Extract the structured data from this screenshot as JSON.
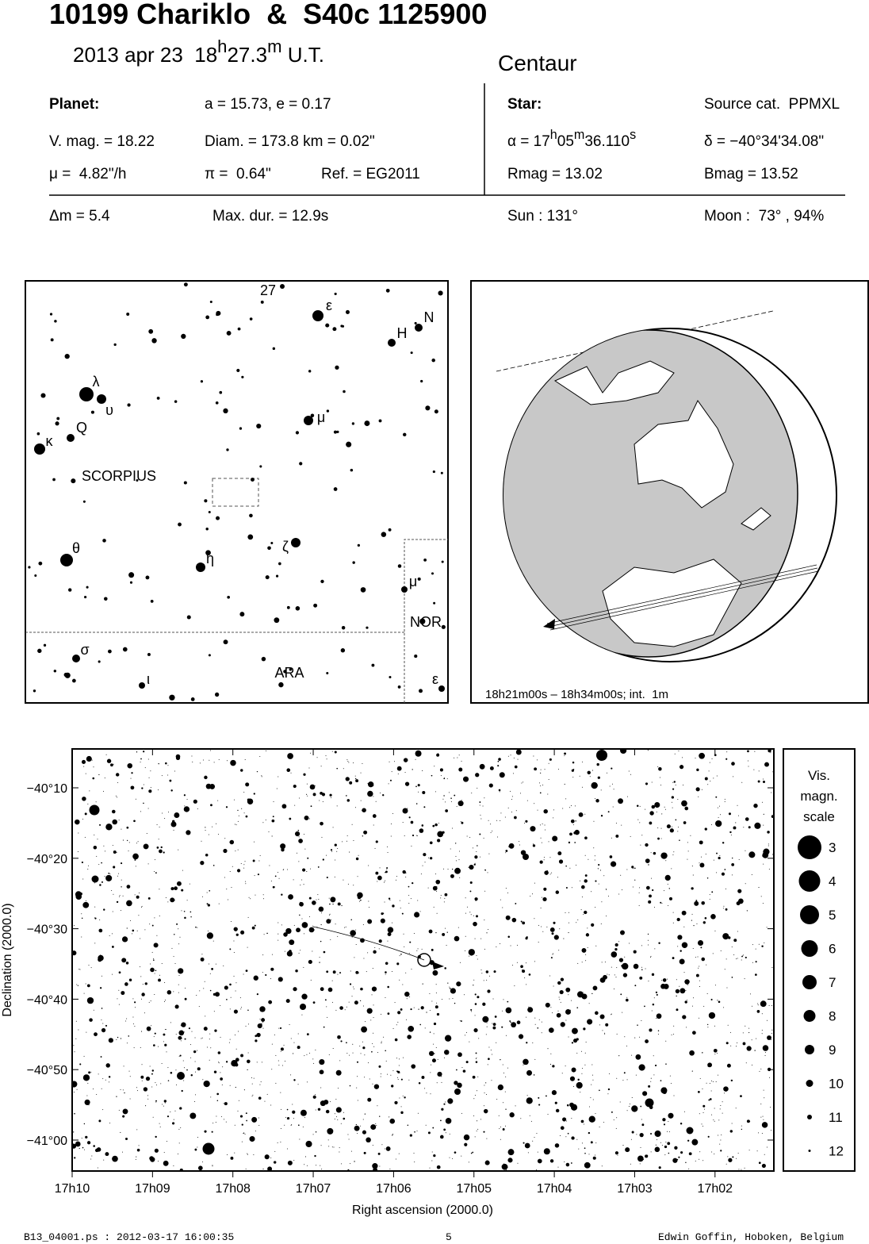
{
  "header": {
    "title": "10199 Chariklo  &  S40c 1125900",
    "datetime": [
      {
        "text": "2013 apr 23  18"
      },
      {
        "text": "h",
        "sup": true
      },
      {
        "text": "27.3"
      },
      {
        "text": "m",
        "sup": true
      },
      {
        "text": " U.T."
      }
    ],
    "constellation": "Centaur"
  },
  "planet": {
    "label": "Planet:",
    "orbit": "a = 15.73, e = 0.17",
    "vmag": "V. mag. = 18.22",
    "diam": "Diam. = 173.8 km = 0.02\"",
    "motion": "μ =  4.82\"/h",
    "parallax": "π =  0.64\"",
    "ref": "Ref. = EG2011"
  },
  "star": {
    "label": "Star:",
    "source": "Source cat.  PPMXL",
    "ra": [
      {
        "text": "α = 17"
      },
      {
        "text": "h",
        "sup": true
      },
      {
        "text": "05"
      },
      {
        "text": "m",
        "sup": true
      },
      {
        "text": "36.110"
      },
      {
        "text": "s",
        "sup": true
      }
    ],
    "dec": "δ = −40°34'34.08\"",
    "rmag": "Rmag = 13.02",
    "bmag": "Bmag = 13.52"
  },
  "event": {
    "dmag": "Δm = 5.4",
    "maxdur": "Max. dur. = 12.9s",
    "sun": "Sun : 131°",
    "moon": "Moon :  73° , 94%"
  },
  "finder": {
    "labels": [
      "27",
      "ε",
      "N",
      "H",
      "λ",
      "υ",
      "μ",
      "Q",
      "κ",
      "SCORPIUS",
      "ζ",
      "θ",
      "η",
      "μ",
      "NOR",
      "σ",
      "ARA",
      "ι",
      "ε"
    ]
  },
  "globe": {
    "caption": "18h21m00s – 18h34m00s; int.  1m"
  },
  "starchart": {
    "yticks": [
      "−40°10",
      "−40°20",
      "−40°30",
      "−40°40",
      "−40°50",
      "−41°00"
    ],
    "xticks": [
      "17h10",
      "17h09",
      "17h08",
      "17h07",
      "17h06",
      "17h05",
      "17h04",
      "17h03",
      "17h02"
    ],
    "xlabel": "Right ascension (2000.0)",
    "ylabel": "Declination (2000.0)"
  },
  "legend": {
    "title": [
      "Vis.",
      "magn.",
      "scale"
    ],
    "magnitudes": [
      3,
      4,
      5,
      6,
      7,
      8,
      9,
      10,
      11,
      12
    ]
  },
  "footer": {
    "file": "B13_04001.ps : 2012-03-17 16:00:35",
    "page": "5",
    "author": "Edwin Goffin, Hoboken, Belgium"
  }
}
